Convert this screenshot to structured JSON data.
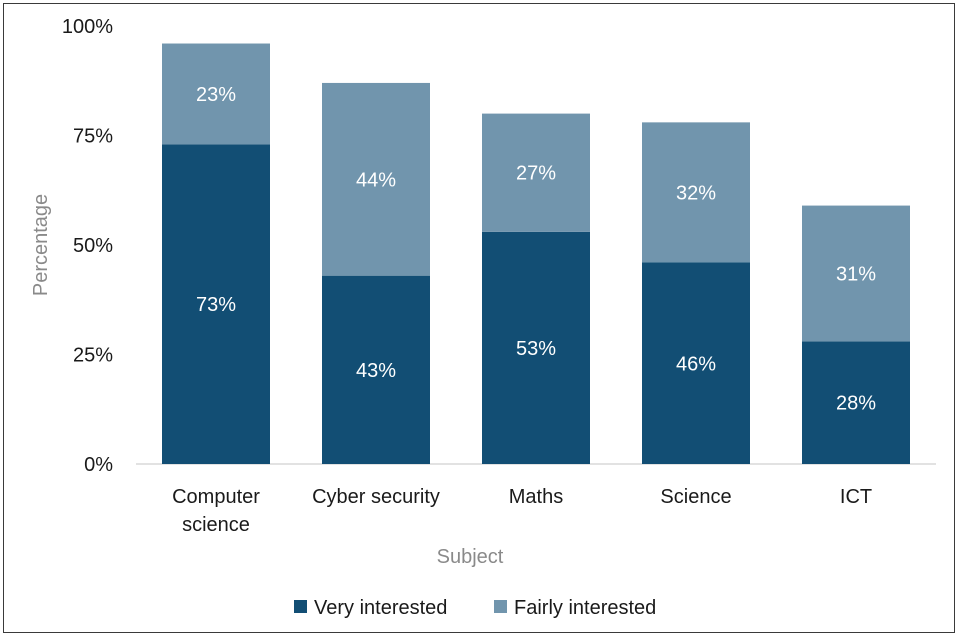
{
  "chart_data": {
    "type": "bar",
    "stacked": true,
    "categories": [
      [
        "Computer",
        "science"
      ],
      [
        "Cyber security"
      ],
      [
        "Maths"
      ],
      [
        "Science"
      ],
      [
        "ICT"
      ]
    ],
    "series": [
      {
        "name": "Very interested",
        "color": "#124e74",
        "values": [
          73,
          43,
          53,
          46,
          28
        ],
        "labels": [
          "73%",
          "43%",
          "53%",
          "46%",
          "28%"
        ]
      },
      {
        "name": "Fairly interested",
        "color": "#7195ad",
        "values": [
          23,
          44,
          27,
          32,
          31
        ],
        "labels": [
          "23%",
          "44%",
          "27%",
          "32%",
          "31%"
        ]
      }
    ],
    "ylim": [
      0,
      100
    ],
    "yticks": [
      0,
      25,
      50,
      75,
      100
    ],
    "ytick_labels": [
      "0%",
      "25%",
      "50%",
      "75%",
      "100%"
    ],
    "xlabel": "Subject",
    "ylabel": "Percentage",
    "legend_position": "bottom",
    "grid": false
  }
}
